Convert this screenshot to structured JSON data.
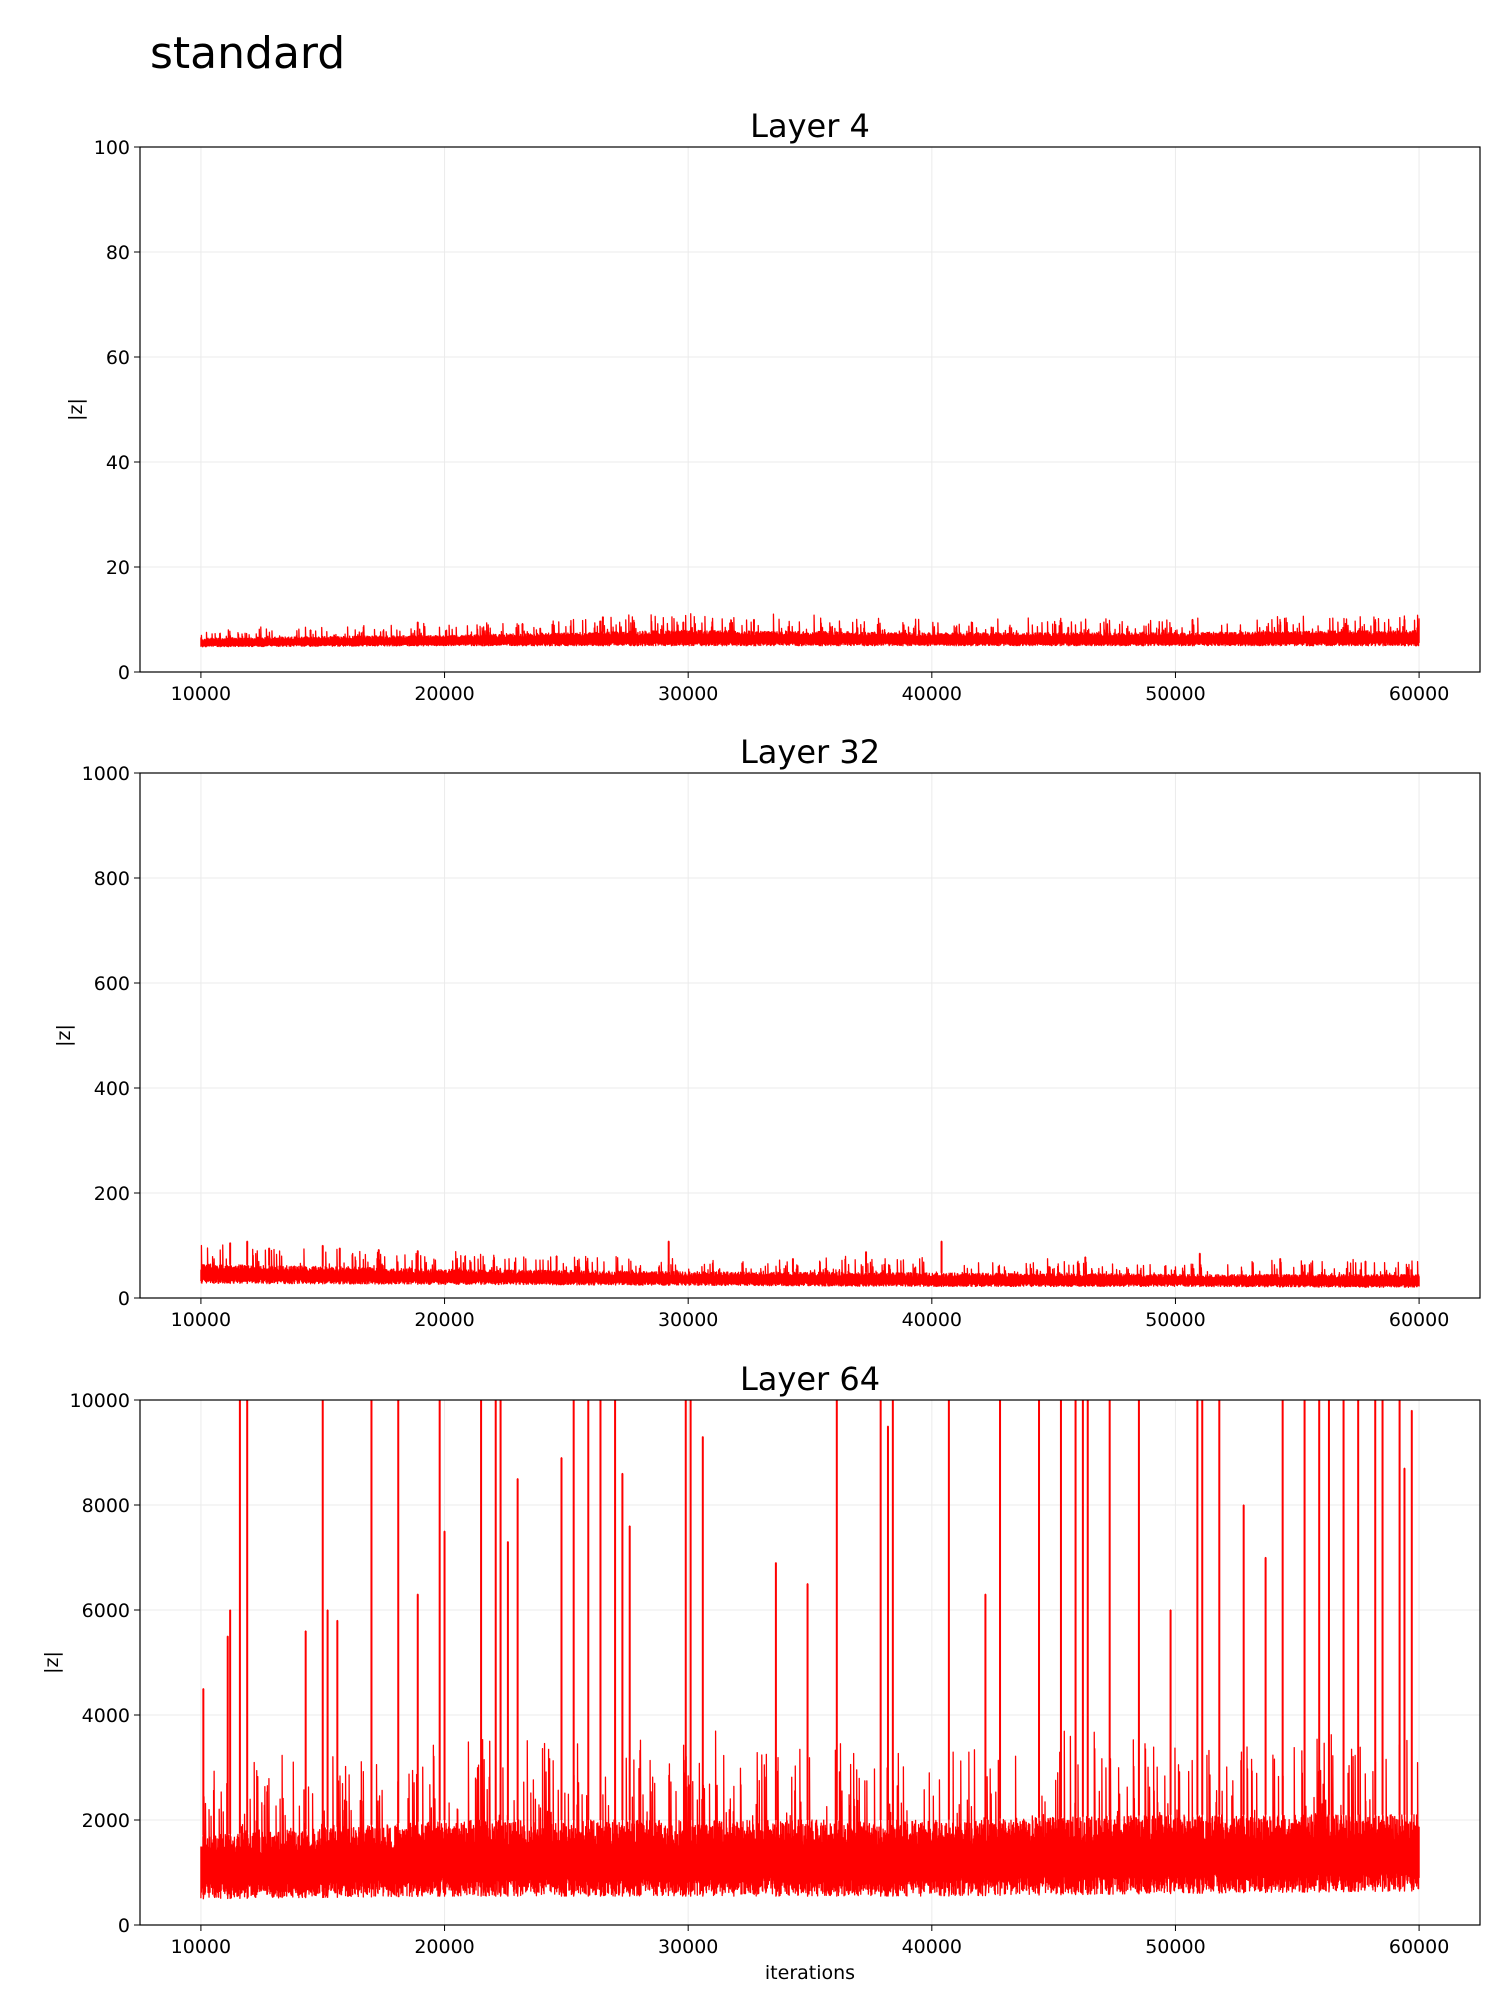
{
  "figure": {
    "title": "standard"
  },
  "chart_data": [
    {
      "type": "line",
      "title": "Layer 4",
      "xlabel": "",
      "ylabel": "|z|",
      "xlim": [
        7500,
        62500
      ],
      "ylim": [
        0,
        100
      ],
      "xticks": [
        10000,
        20000,
        30000,
        40000,
        50000,
        60000
      ],
      "yticks": [
        0,
        20,
        40,
        60,
        80,
        100
      ],
      "grid": true,
      "color": "#ff0000",
      "x_range": [
        10000,
        60000
      ],
      "band": [
        {
          "x": 10000,
          "min": 4.8,
          "max": 6.5
        },
        {
          "x": 20000,
          "min": 5.0,
          "max": 7.0
        },
        {
          "x": 30000,
          "min": 5.0,
          "max": 8.0
        },
        {
          "x": 40000,
          "min": 5.0,
          "max": 7.5
        },
        {
          "x": 50000,
          "min": 5.0,
          "max": 7.5
        },
        {
          "x": 60000,
          "min": 5.0,
          "max": 8.0
        }
      ],
      "spikes": [
        {
          "x": 14500,
          "y": 8
        },
        {
          "x": 18900,
          "y": 9.5
        },
        {
          "x": 23200,
          "y": 9.2
        },
        {
          "x": 26500,
          "y": 10.5
        },
        {
          "x": 29800,
          "y": 9.5
        },
        {
          "x": 32700,
          "y": 10
        },
        {
          "x": 35500,
          "y": 8.5
        },
        {
          "x": 41000,
          "y": 8.5
        },
        {
          "x": 45600,
          "y": 8.5
        },
        {
          "x": 50700,
          "y": 10
        },
        {
          "x": 54300,
          "y": 9
        },
        {
          "x": 58200,
          "y": 9.5
        },
        {
          "x": 59400,
          "y": 10
        }
      ]
    },
    {
      "type": "line",
      "title": "Layer 32",
      "xlabel": "",
      "ylabel": "|z|",
      "xlim": [
        7500,
        62500
      ],
      "ylim": [
        0,
        1000
      ],
      "xticks": [
        10000,
        20000,
        30000,
        40000,
        50000,
        60000
      ],
      "yticks": [
        0,
        200,
        400,
        600,
        800,
        1000
      ],
      "grid": true,
      "color": "#ff0000",
      "x_range": [
        10000,
        60000
      ],
      "band": [
        {
          "x": 10000,
          "min": 28,
          "max": 65
        },
        {
          "x": 20000,
          "min": 26,
          "max": 55
        },
        {
          "x": 30000,
          "min": 24,
          "max": 50
        },
        {
          "x": 40000,
          "min": 22,
          "max": 48
        },
        {
          "x": 50000,
          "min": 22,
          "max": 45
        },
        {
          "x": 60000,
          "min": 20,
          "max": 45
        }
      ],
      "spikes": [
        {
          "x": 11200,
          "y": 105
        },
        {
          "x": 11900,
          "y": 108
        },
        {
          "x": 12800,
          "y": 95
        },
        {
          "x": 15000,
          "y": 100
        },
        {
          "x": 15700,
          "y": 95
        },
        {
          "x": 17300,
          "y": 92
        },
        {
          "x": 18900,
          "y": 90
        },
        {
          "x": 24600,
          "y": 80
        },
        {
          "x": 29200,
          "y": 108
        },
        {
          "x": 34300,
          "y": 75
        },
        {
          "x": 37300,
          "y": 88
        },
        {
          "x": 40400,
          "y": 108
        },
        {
          "x": 46300,
          "y": 78
        },
        {
          "x": 51000,
          "y": 85
        },
        {
          "x": 54300,
          "y": 75
        },
        {
          "x": 57800,
          "y": 70
        }
      ]
    },
    {
      "type": "line",
      "title": "Layer 64",
      "xlabel": "iterations",
      "ylabel": "|z|",
      "xlim": [
        7500,
        62500
      ],
      "ylim": [
        0,
        10000
      ],
      "xticks": [
        10000,
        20000,
        30000,
        40000,
        50000,
        60000
      ],
      "yticks": [
        0,
        2000,
        4000,
        6000,
        8000,
        10000
      ],
      "grid": true,
      "color": "#ff0000",
      "x_range": [
        10000,
        60000
      ],
      "band": [
        {
          "x": 10000,
          "min": 500,
          "max": 1700
        },
        {
          "x": 20000,
          "min": 550,
          "max": 2000
        },
        {
          "x": 30000,
          "min": 550,
          "max": 2000
        },
        {
          "x": 40000,
          "min": 550,
          "max": 2000
        },
        {
          "x": 50000,
          "min": 600,
          "max": 2100
        },
        {
          "x": 60000,
          "min": 650,
          "max": 2100
        }
      ],
      "spikes": [
        {
          "x": 10100,
          "y": 4500
        },
        {
          "x": 11100,
          "y": 5500
        },
        {
          "x": 11200,
          "y": 6000
        },
        {
          "x": 11600,
          "y": 10000
        },
        {
          "x": 11900,
          "y": 10000
        },
        {
          "x": 14300,
          "y": 5600
        },
        {
          "x": 15000,
          "y": 10000
        },
        {
          "x": 15200,
          "y": 6000
        },
        {
          "x": 15600,
          "y": 5800
        },
        {
          "x": 17000,
          "y": 10000
        },
        {
          "x": 18100,
          "y": 10000
        },
        {
          "x": 18900,
          "y": 6300
        },
        {
          "x": 19800,
          "y": 10000
        },
        {
          "x": 20000,
          "y": 7500
        },
        {
          "x": 21500,
          "y": 10000
        },
        {
          "x": 22100,
          "y": 10000
        },
        {
          "x": 22300,
          "y": 10000
        },
        {
          "x": 22600,
          "y": 7300
        },
        {
          "x": 23000,
          "y": 8500
        },
        {
          "x": 24800,
          "y": 8900
        },
        {
          "x": 25300,
          "y": 10000
        },
        {
          "x": 25900,
          "y": 10000
        },
        {
          "x": 26400,
          "y": 10000
        },
        {
          "x": 27000,
          "y": 10000
        },
        {
          "x": 27300,
          "y": 8600
        },
        {
          "x": 27600,
          "y": 7600
        },
        {
          "x": 29900,
          "y": 10000
        },
        {
          "x": 30100,
          "y": 10000
        },
        {
          "x": 30600,
          "y": 9300
        },
        {
          "x": 33600,
          "y": 6900
        },
        {
          "x": 34900,
          "y": 6500
        },
        {
          "x": 36100,
          "y": 10000
        },
        {
          "x": 37900,
          "y": 10000
        },
        {
          "x": 38200,
          "y": 9500
        },
        {
          "x": 38400,
          "y": 10000
        },
        {
          "x": 40700,
          "y": 10000
        },
        {
          "x": 42200,
          "y": 6300
        },
        {
          "x": 42800,
          "y": 10000
        },
        {
          "x": 44400,
          "y": 10000
        },
        {
          "x": 45300,
          "y": 10000
        },
        {
          "x": 45900,
          "y": 10000
        },
        {
          "x": 46200,
          "y": 10000
        },
        {
          "x": 46400,
          "y": 10000
        },
        {
          "x": 47300,
          "y": 10000
        },
        {
          "x": 48500,
          "y": 10000
        },
        {
          "x": 50900,
          "y": 10000
        },
        {
          "x": 51100,
          "y": 10000
        },
        {
          "x": 51800,
          "y": 10000
        },
        {
          "x": 52800,
          "y": 8000
        },
        {
          "x": 53700,
          "y": 7000
        },
        {
          "x": 54400,
          "y": 10000
        },
        {
          "x": 55300,
          "y": 10000
        },
        {
          "x": 55900,
          "y": 10000
        },
        {
          "x": 56300,
          "y": 10000
        },
        {
          "x": 56900,
          "y": 10000
        },
        {
          "x": 57500,
          "y": 10000
        },
        {
          "x": 58200,
          "y": 10000
        },
        {
          "x": 58500,
          "y": 10000
        },
        {
          "x": 59400,
          "y": 8700
        },
        {
          "x": 59700,
          "y": 9800
        },
        {
          "x": 59200,
          "y": 10000
        },
        {
          "x": 49800,
          "y": 6000
        }
      ]
    }
  ]
}
